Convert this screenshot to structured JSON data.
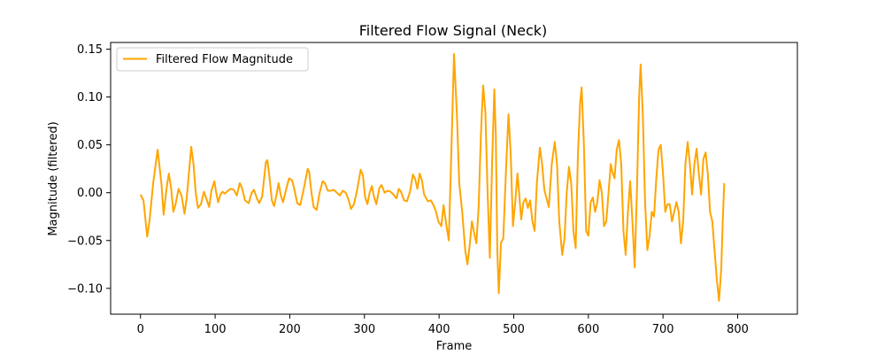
{
  "chart_data": {
    "type": "line",
    "title": "Filtered Flow Signal (Neck)",
    "xlabel": "Frame",
    "ylabel": "Magnitude (filtered)",
    "xlim": [
      -40,
      880
    ],
    "ylim": [
      -0.127,
      0.157
    ],
    "x_ticks": [
      0,
      100,
      200,
      300,
      400,
      500,
      600,
      700,
      800
    ],
    "x_tick_labels": [
      "0",
      "100",
      "200",
      "300",
      "400",
      "500",
      "600",
      "700",
      "800"
    ],
    "y_ticks": [
      -0.1,
      -0.05,
      0.0,
      0.05,
      0.1,
      0.15
    ],
    "y_tick_labels": [
      "−0.10",
      "−0.05",
      "0.00",
      "0.05",
      "0.10",
      "0.15"
    ],
    "grid": false,
    "legend_position": "upper-left",
    "series": [
      {
        "name": "Filtered Flow Magnitude",
        "color": "#FFA500",
        "points": [
          [
            0,
            -0.002
          ],
          [
            4,
            -0.008
          ],
          [
            9,
            -0.046
          ],
          [
            12,
            -0.03
          ],
          [
            17,
            0.01
          ],
          [
            23,
            0.045
          ],
          [
            28,
            0.01
          ],
          [
            31,
            -0.023
          ],
          [
            35,
            0.005
          ],
          [
            38,
            0.02
          ],
          [
            41,
            0.005
          ],
          [
            44,
            -0.02
          ],
          [
            47,
            -0.012
          ],
          [
            51,
            0.004
          ],
          [
            55,
            -0.003
          ],
          [
            59,
            -0.022
          ],
          [
            62,
            -0.005
          ],
          [
            68,
            0.048
          ],
          [
            71,
            0.03
          ],
          [
            74,
            0.0
          ],
          [
            77,
            -0.016
          ],
          [
            81,
            -0.012
          ],
          [
            85,
            0.001
          ],
          [
            89,
            -0.008
          ],
          [
            92,
            -0.015
          ],
          [
            95,
            0.002
          ],
          [
            99,
            0.012
          ],
          [
            101,
            0.002
          ],
          [
            104,
            -0.01
          ],
          [
            107,
            -0.002
          ],
          [
            110,
            0.001
          ],
          [
            113,
            -0.001
          ],
          [
            117,
            0.002
          ],
          [
            121,
            0.004
          ],
          [
            125,
            0.003
          ],
          [
            129,
            -0.003
          ],
          [
            133,
            0.01
          ],
          [
            136,
            0.005
          ],
          [
            140,
            -0.008
          ],
          [
            145,
            -0.011
          ],
          [
            149,
            0.0
          ],
          [
            152,
            0.003
          ],
          [
            156,
            -0.006
          ],
          [
            159,
            -0.011
          ],
          [
            163,
            -0.004
          ],
          [
            168,
            0.032
          ],
          [
            170,
            0.034
          ],
          [
            173,
            0.015
          ],
          [
            176,
            -0.008
          ],
          [
            179,
            -0.014
          ],
          [
            182,
            -0.003
          ],
          [
            185,
            0.01
          ],
          [
            188,
            -0.003
          ],
          [
            191,
            -0.01
          ],
          [
            195,
            0.003
          ],
          [
            199,
            0.015
          ],
          [
            203,
            0.013
          ],
          [
            206,
            0.004
          ],
          [
            210,
            -0.011
          ],
          [
            214,
            -0.013
          ],
          [
            219,
            0.005
          ],
          [
            224,
            0.025
          ],
          [
            226,
            0.022
          ],
          [
            229,
            0.0
          ],
          [
            232,
            -0.015
          ],
          [
            236,
            -0.018
          ],
          [
            240,
            0.0
          ],
          [
            244,
            0.012
          ],
          [
            247,
            0.01
          ],
          [
            251,
            0.002
          ],
          [
            255,
            0.002
          ],
          [
            259,
            0.003
          ],
          [
            263,
            0.0
          ],
          [
            267,
            -0.003
          ],
          [
            271,
            0.002
          ],
          [
            275,
            0.0
          ],
          [
            279,
            -0.008
          ],
          [
            282,
            -0.017
          ],
          [
            286,
            -0.012
          ],
          [
            290,
            0.002
          ],
          [
            295,
            0.024
          ],
          [
            298,
            0.018
          ],
          [
            301,
            -0.005
          ],
          [
            304,
            -0.012
          ],
          [
            307,
            0.0
          ],
          [
            310,
            0.007
          ],
          [
            313,
            -0.005
          ],
          [
            316,
            -0.012
          ],
          [
            320,
            0.005
          ],
          [
            323,
            0.008
          ],
          [
            327,
            0.0
          ],
          [
            331,
            0.002
          ],
          [
            335,
            0.001
          ],
          [
            339,
            -0.002
          ],
          [
            343,
            -0.006
          ],
          [
            346,
            0.004
          ],
          [
            349,
            0.001
          ],
          [
            353,
            -0.008
          ],
          [
            357,
            -0.009
          ],
          [
            361,
            0.001
          ],
          [
            365,
            0.019
          ],
          [
            368,
            0.014
          ],
          [
            371,
            0.004
          ],
          [
            374,
            0.02
          ],
          [
            377,
            0.013
          ],
          [
            380,
            -0.002
          ],
          [
            385,
            -0.009
          ],
          [
            389,
            -0.008
          ],
          [
            393,
            -0.014
          ],
          [
            396,
            -0.02
          ],
          [
            399,
            -0.03
          ],
          [
            403,
            -0.035
          ],
          [
            406,
            -0.013
          ],
          [
            409,
            -0.03
          ],
          [
            413,
            -0.05
          ],
          [
            416,
            0.03
          ],
          [
            420,
            0.145
          ],
          [
            424,
            0.08
          ],
          [
            427,
            0.01
          ],
          [
            431,
            -0.02
          ],
          [
            435,
            -0.06
          ],
          [
            438,
            -0.075
          ],
          [
            441,
            -0.055
          ],
          [
            444,
            -0.03
          ],
          [
            447,
            -0.042
          ],
          [
            450,
            -0.053
          ],
          [
            453,
            -0.015
          ],
          [
            456,
            0.06
          ],
          [
            459,
            0.112
          ],
          [
            462,
            0.085
          ],
          [
            465,
            0.0
          ],
          [
            468,
            -0.068
          ],
          [
            471,
            0.03
          ],
          [
            474,
            0.108
          ],
          [
            476,
            0.06
          ],
          [
            478,
            -0.06
          ],
          [
            480,
            -0.105
          ],
          [
            483,
            -0.052
          ],
          [
            486,
            -0.048
          ],
          [
            490,
            0.03
          ],
          [
            493,
            0.082
          ],
          [
            496,
            0.04
          ],
          [
            499,
            -0.035
          ],
          [
            502,
            -0.01
          ],
          [
            505,
            0.02
          ],
          [
            507,
            0.002
          ],
          [
            510,
            -0.028
          ],
          [
            513,
            -0.01
          ],
          [
            516,
            -0.006
          ],
          [
            519,
            -0.016
          ],
          [
            522,
            -0.008
          ],
          [
            525,
            -0.03
          ],
          [
            528,
            -0.04
          ],
          [
            531,
            0.01
          ],
          [
            535,
            0.047
          ],
          [
            538,
            0.03
          ],
          [
            541,
            0.003
          ],
          [
            544,
            -0.006
          ],
          [
            547,
            -0.015
          ],
          [
            551,
            0.03
          ],
          [
            555,
            0.053
          ],
          [
            558,
            0.03
          ],
          [
            561,
            -0.03
          ],
          [
            565,
            -0.065
          ],
          [
            568,
            -0.048
          ],
          [
            571,
            0.0
          ],
          [
            574,
            0.027
          ],
          [
            577,
            0.01
          ],
          [
            580,
            -0.04
          ],
          [
            583,
            -0.058
          ],
          [
            586,
            0.04
          ],
          [
            589,
            0.095
          ],
          [
            591,
            0.11
          ],
          [
            594,
            0.05
          ],
          [
            597,
            -0.04
          ],
          [
            600,
            -0.045
          ],
          [
            603,
            -0.01
          ],
          [
            606,
            -0.005
          ],
          [
            609,
            -0.02
          ],
          [
            612,
            -0.01
          ],
          [
            615,
            0.013
          ],
          [
            618,
            0.0
          ],
          [
            621,
            -0.035
          ],
          [
            624,
            -0.03
          ],
          [
            627,
            0.0
          ],
          [
            630,
            0.03
          ],
          [
            632,
            0.022
          ],
          [
            635,
            0.015
          ],
          [
            638,
            0.045
          ],
          [
            641,
            0.055
          ],
          [
            644,
            0.03
          ],
          [
            647,
            -0.04
          ],
          [
            650,
            -0.065
          ],
          [
            653,
            -0.02
          ],
          [
            656,
            0.012
          ],
          [
            659,
            -0.03
          ],
          [
            662,
            -0.078
          ],
          [
            665,
            0.0
          ],
          [
            668,
            0.1
          ],
          [
            670,
            0.134
          ],
          [
            673,
            0.08
          ],
          [
            676,
            -0.01
          ],
          [
            679,
            -0.06
          ],
          [
            682,
            -0.045
          ],
          [
            685,
            -0.02
          ],
          [
            688,
            -0.025
          ],
          [
            691,
            0.015
          ],
          [
            694,
            0.045
          ],
          [
            697,
            0.05
          ],
          [
            700,
            0.02
          ],
          [
            703,
            -0.02
          ],
          [
            706,
            -0.012
          ],
          [
            709,
            -0.012
          ],
          [
            712,
            -0.03
          ],
          [
            715,
            -0.02
          ],
          [
            718,
            -0.01
          ],
          [
            721,
            -0.02
          ],
          [
            724,
            -0.053
          ],
          [
            727,
            -0.03
          ],
          [
            730,
            0.03
          ],
          [
            733,
            0.053
          ],
          [
            736,
            0.03
          ],
          [
            739,
            -0.002
          ],
          [
            742,
            0.03
          ],
          [
            745,
            0.046
          ],
          [
            748,
            0.02
          ],
          [
            751,
            -0.002
          ],
          [
            754,
            0.035
          ],
          [
            757,
            0.042
          ],
          [
            760,
            0.02
          ],
          [
            763,
            -0.02
          ],
          [
            766,
            -0.03
          ],
          [
            769,
            -0.06
          ],
          [
            772,
            -0.09
          ],
          [
            775,
            -0.113
          ],
          [
            778,
            -0.08
          ],
          [
            780,
            -0.03
          ],
          [
            782,
            0.01
          ]
        ]
      }
    ]
  }
}
